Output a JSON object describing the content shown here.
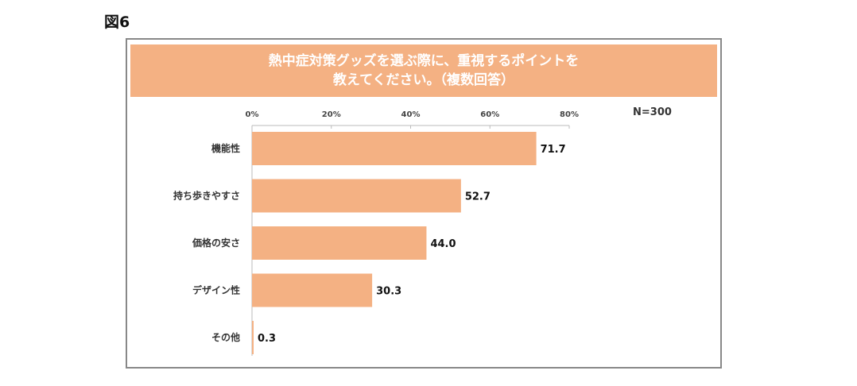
{
  "figure_label": "図6",
  "chart_data": {
    "type": "bar",
    "orientation": "horizontal",
    "title_lines": [
      "熱中症対策グッズを選ぶ際に、重視するポイントを",
      "教えてください。（複数回答）"
    ],
    "sample_note": "N=300",
    "categories": [
      "機能性",
      "持ち歩きやすさ",
      "価格の安さ",
      "デザイン性",
      "その他"
    ],
    "values": [
      71.7,
      52.7,
      44.0,
      30.3,
      0.3
    ],
    "value_labels": [
      "71.7",
      "52.7",
      "44.0",
      "30.3",
      "0.3"
    ],
    "xlim": [
      0,
      80
    ],
    "x_ticks": [
      0,
      20,
      40,
      60,
      80
    ],
    "x_tick_labels": [
      "0%",
      "20%",
      "40%",
      "60%",
      "80%"
    ],
    "bar_color": "#f4b183",
    "grid": false,
    "axis_position": "top"
  }
}
